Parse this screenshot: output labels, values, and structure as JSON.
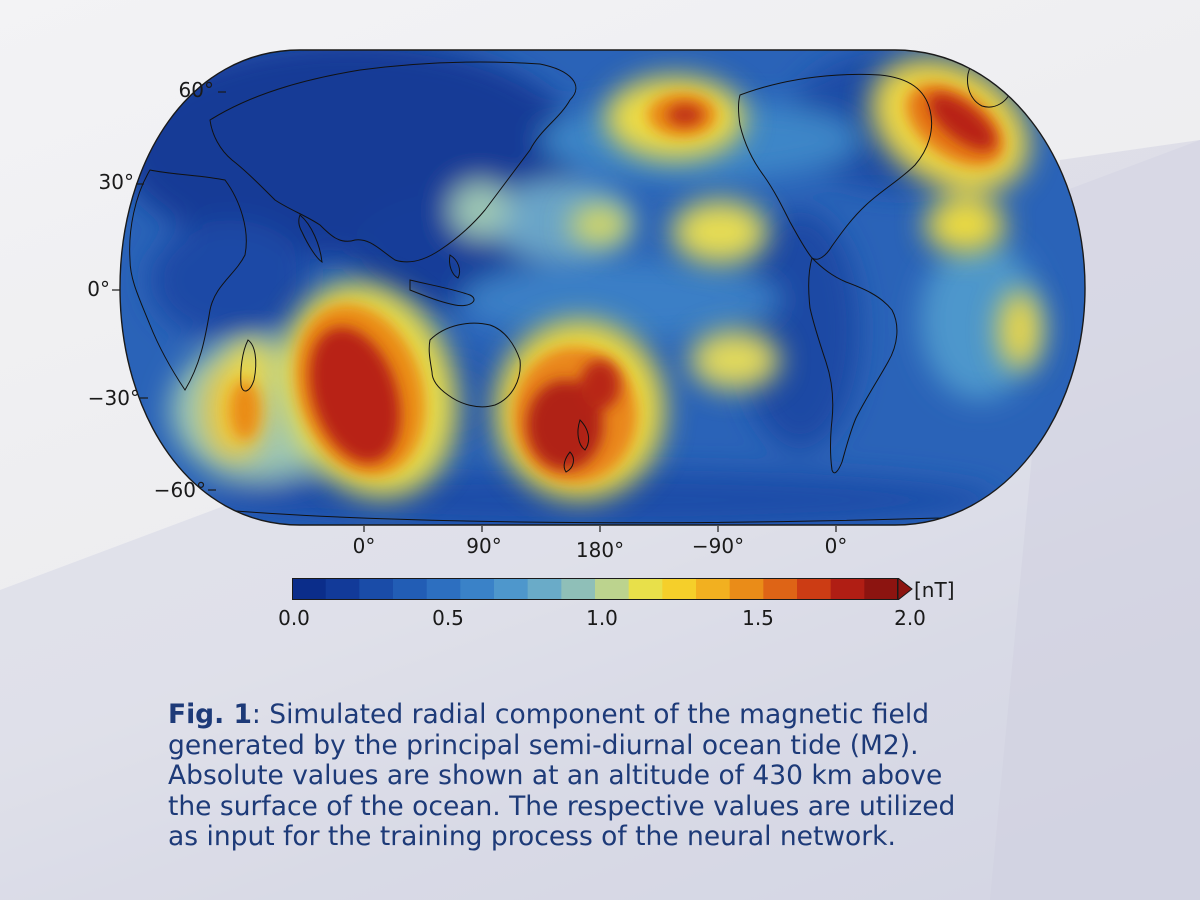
{
  "map": {
    "lat_labels": [
      "60°",
      "30°",
      "0°",
      "−30°",
      "−60°"
    ],
    "lon_labels": [
      "0°",
      "90°",
      "180°",
      "−90°",
      "0°"
    ]
  },
  "colorbar": {
    "unit": "[nT]",
    "ticks": [
      "0.0",
      "0.5",
      "1.0",
      "1.5",
      "2.0"
    ],
    "range": [
      0.0,
      2.0
    ],
    "colors": [
      "#0b2d8a",
      "#123a99",
      "#1a4ca8",
      "#225db5",
      "#2d6fc0",
      "#3a82c8",
      "#4e97cc",
      "#6aabc8",
      "#8fbfb8",
      "#bcd38e",
      "#e8e04a",
      "#f5cf2a",
      "#f2b020",
      "#ea8c18",
      "#de6416",
      "#cc3c14",
      "#b01e14",
      "#8c1410"
    ]
  },
  "caption": {
    "fig_label": "Fig. 1",
    "line1": ": Simulated radial component of the magnetic field",
    "line2": "generated by the principal semi-diurnal ocean tide (M2).",
    "line3": "Absolute values are shown at an altitude of 430 km above",
    "line4": "the surface of the ocean. The respective values are utilized",
    "line5": "as input for the training process of the neural network."
  }
}
